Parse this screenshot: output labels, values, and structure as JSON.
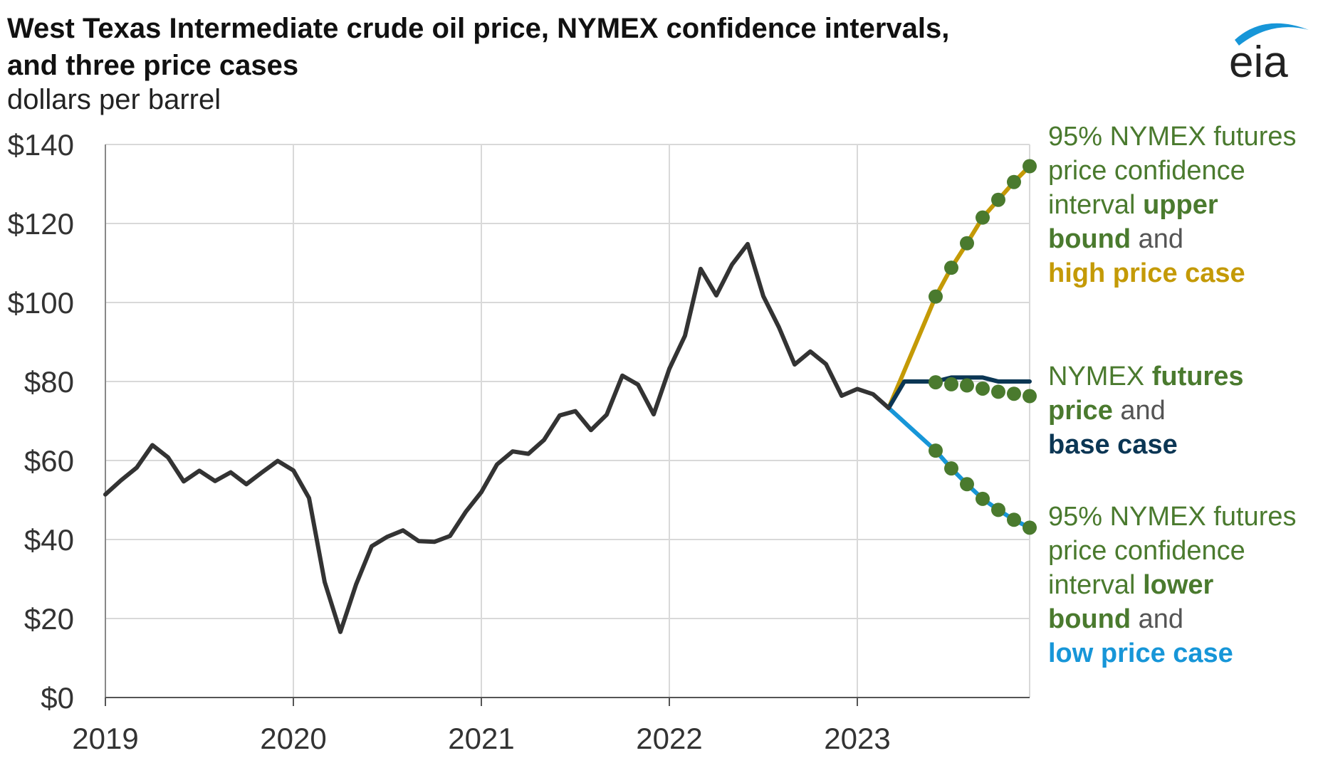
{
  "header": {
    "title_line1": "West Texas Intermediate crude oil price, NYMEX confidence intervals,",
    "title_line2": "and three price cases",
    "subtitle": "dollars per barrel",
    "logo_text": "eia"
  },
  "annotations": {
    "upper": {
      "line1": "95% NYMEX futures",
      "line2": "price confidence",
      "line3a": "interval ",
      "line3b": "upper",
      "line4a": "bound",
      "line4b": " and",
      "line5": "high price case"
    },
    "base": {
      "line1a": "NYMEX ",
      "line1b": "futures",
      "line2a": "price",
      "line2b": " and",
      "line3": "base case"
    },
    "lower": {
      "line1": "95% NYMEX futures",
      "line2": "price confidence",
      "line3a": "interval ",
      "line3b": "lower",
      "line4a": "bound",
      "line4b": " and",
      "line5": "low price case"
    }
  },
  "colors": {
    "history": "#333333",
    "high_case": "#c49a06",
    "base_case": "#0b3654",
    "low_case": "#1796d8",
    "nymex_dots": "#4a7a2e",
    "grid": "#d9d9d9"
  },
  "chart_data": {
    "type": "line",
    "x_unit": "date (monthly)",
    "xlim": [
      "2019-01",
      "2023-12"
    ],
    "ylim": [
      0,
      140
    ],
    "y_ticks": [
      0,
      20,
      40,
      60,
      80,
      100,
      120,
      140
    ],
    "y_tick_labels": [
      "$0",
      "$20",
      "$40",
      "$60",
      "$80",
      "$100",
      "$120",
      "$140"
    ],
    "x_tick_dates": [
      "2019-01",
      "2020-01",
      "2021-01",
      "2022-01",
      "2023-01"
    ],
    "x_tick_labels": [
      "2019",
      "2020",
      "2021",
      "2022",
      "2023"
    ],
    "grid": true,
    "series": [
      {
        "kind": "history",
        "x": [
          "2019-01",
          "2019-02",
          "2019-03",
          "2019-04",
          "2019-05",
          "2019-06",
          "2019-07",
          "2019-08",
          "2019-09",
          "2019-10",
          "2019-11",
          "2019-12",
          "2020-01",
          "2020-02",
          "2020-03",
          "2020-04",
          "2020-05",
          "2020-06",
          "2020-07",
          "2020-08",
          "2020-09",
          "2020-10",
          "2020-11",
          "2020-12",
          "2021-01",
          "2021-02",
          "2021-03",
          "2021-04",
          "2021-05",
          "2021-06",
          "2021-07",
          "2021-08",
          "2021-09",
          "2021-10",
          "2021-11",
          "2021-12",
          "2022-01",
          "2022-02",
          "2022-03",
          "2022-04",
          "2022-05",
          "2022-06",
          "2022-07",
          "2022-08",
          "2022-09",
          "2022-10",
          "2022-11",
          "2022-12",
          "2023-01",
          "2023-02",
          "2023-03"
        ],
        "y": [
          51.4,
          55.0,
          58.2,
          63.9,
          60.8,
          54.7,
          57.4,
          54.8,
          57.0,
          54.0,
          57.0,
          59.9,
          57.5,
          50.5,
          29.2,
          16.6,
          28.6,
          38.3,
          40.7,
          42.3,
          39.6,
          39.4,
          40.9,
          47.0,
          52.0,
          59.0,
          62.3,
          61.7,
          65.2,
          71.4,
          72.5,
          67.7,
          71.6,
          81.5,
          79.2,
          71.7,
          83.2,
          91.6,
          108.5,
          101.8,
          109.6,
          114.8,
          101.6,
          93.7,
          84.3,
          87.6,
          84.4,
          76.4,
          78.1,
          76.8,
          73.3
        ]
      },
      {
        "kind": "high_case",
        "x": [
          "2023-03",
          "2023-06",
          "2023-07",
          "2023-08",
          "2023-09",
          "2023-10",
          "2023-11",
          "2023-12"
        ],
        "y": [
          73.3,
          101.5,
          108.8,
          115.0,
          121.5,
          126.0,
          130.5,
          134.5
        ]
      },
      {
        "kind": "base_case",
        "x": [
          "2023-03",
          "2023-04",
          "2023-05",
          "2023-06",
          "2023-07",
          "2023-08",
          "2023-09",
          "2023-10",
          "2023-11",
          "2023-12"
        ],
        "y": [
          73.3,
          80.0,
          80.0,
          80.0,
          81.0,
          81.0,
          81.0,
          80.0,
          80.0,
          80.0
        ]
      },
      {
        "kind": "low_case",
        "x": [
          "2023-03",
          "2023-06",
          "2023-07",
          "2023-08",
          "2023-09",
          "2023-10",
          "2023-11",
          "2023-12"
        ],
        "y": [
          73.3,
          62.5,
          58.0,
          54.0,
          50.3,
          47.5,
          45.0,
          43.0
        ]
      },
      {
        "kind": "nymex_upper_bound",
        "x": [
          "2023-06",
          "2023-07",
          "2023-08",
          "2023-09",
          "2023-10",
          "2023-11",
          "2023-12"
        ],
        "y": [
          101.5,
          108.8,
          115.0,
          121.5,
          126.0,
          130.5,
          134.5
        ]
      },
      {
        "kind": "nymex_futures",
        "x": [
          "2023-06",
          "2023-07",
          "2023-08",
          "2023-09",
          "2023-10",
          "2023-11",
          "2023-12"
        ],
        "y": [
          79.8,
          79.3,
          79.0,
          78.2,
          77.4,
          76.9,
          76.3
        ]
      },
      {
        "kind": "nymex_lower_bound",
        "x": [
          "2023-06",
          "2023-07",
          "2023-08",
          "2023-09",
          "2023-10",
          "2023-11",
          "2023-12"
        ],
        "y": [
          62.5,
          58.0,
          54.0,
          50.3,
          47.5,
          45.0,
          43.0
        ]
      }
    ]
  }
}
